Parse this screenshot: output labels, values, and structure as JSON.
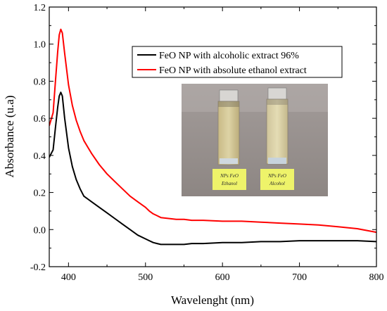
{
  "chart_data": {
    "type": "line",
    "title": "",
    "xlabel": "Wavelenght (nm)",
    "ylabel": "Absorbance (u.a)",
    "xlim": [
      375,
      800
    ],
    "ylim": [
      -0.2,
      1.2
    ],
    "x_ticks": [
      400,
      500,
      600,
      700,
      800
    ],
    "y_ticks": [
      -0.2,
      0.0,
      0.2,
      0.4,
      0.6,
      0.8,
      1.0,
      1.2
    ],
    "x_tick_labels": [
      "400",
      "500",
      "600",
      "700",
      "800"
    ],
    "y_tick_labels": [
      "-0.2",
      "0.0",
      "0.2",
      "0.4",
      "0.6",
      "0.8",
      "1.0",
      "1.2"
    ],
    "grid": false,
    "legend_position": "top-right",
    "series": [
      {
        "name": "FeO NP with alcoholic extract 96%",
        "color": "#000000",
        "x": [
          375,
          380,
          383,
          386,
          388,
          390,
          392,
          395,
          400,
          405,
          410,
          415,
          420,
          430,
          440,
          450,
          460,
          470,
          480,
          490,
          500,
          505,
          510,
          515,
          520,
          530,
          540,
          550,
          560,
          575,
          600,
          625,
          650,
          675,
          700,
          725,
          750,
          775,
          800
        ],
        "y": [
          0.39,
          0.43,
          0.55,
          0.66,
          0.72,
          0.74,
          0.72,
          0.6,
          0.44,
          0.34,
          0.27,
          0.22,
          0.18,
          0.15,
          0.12,
          0.09,
          0.06,
          0.03,
          0.0,
          -0.03,
          -0.05,
          -0.06,
          -0.07,
          -0.075,
          -0.08,
          -0.08,
          -0.08,
          -0.08,
          -0.075,
          -0.075,
          -0.07,
          -0.07,
          -0.065,
          -0.065,
          -0.06,
          -0.06,
          -0.06,
          -0.06,
          -0.065
        ]
      },
      {
        "name": "FeO NP with absolute ethanol extract",
        "color": "#ff0000",
        "x": [
          375,
          380,
          383,
          386,
          388,
          390,
          392,
          395,
          400,
          405,
          410,
          415,
          420,
          430,
          440,
          450,
          460,
          470,
          480,
          490,
          500,
          505,
          510,
          515,
          520,
          530,
          540,
          550,
          560,
          575,
          600,
          625,
          650,
          675,
          700,
          725,
          750,
          775,
          800
        ],
        "y": [
          0.56,
          0.63,
          0.8,
          0.96,
          1.05,
          1.08,
          1.06,
          0.95,
          0.78,
          0.67,
          0.59,
          0.53,
          0.48,
          0.41,
          0.35,
          0.3,
          0.26,
          0.22,
          0.18,
          0.15,
          0.12,
          0.1,
          0.085,
          0.075,
          0.065,
          0.06,
          0.055,
          0.055,
          0.05,
          0.05,
          0.045,
          0.045,
          0.04,
          0.035,
          0.03,
          0.025,
          0.015,
          0.005,
          -0.015
        ]
      }
    ],
    "inset_photo_labels": [
      "NPs FeO Ethanol",
      "NPs FeO Alcohol"
    ]
  }
}
